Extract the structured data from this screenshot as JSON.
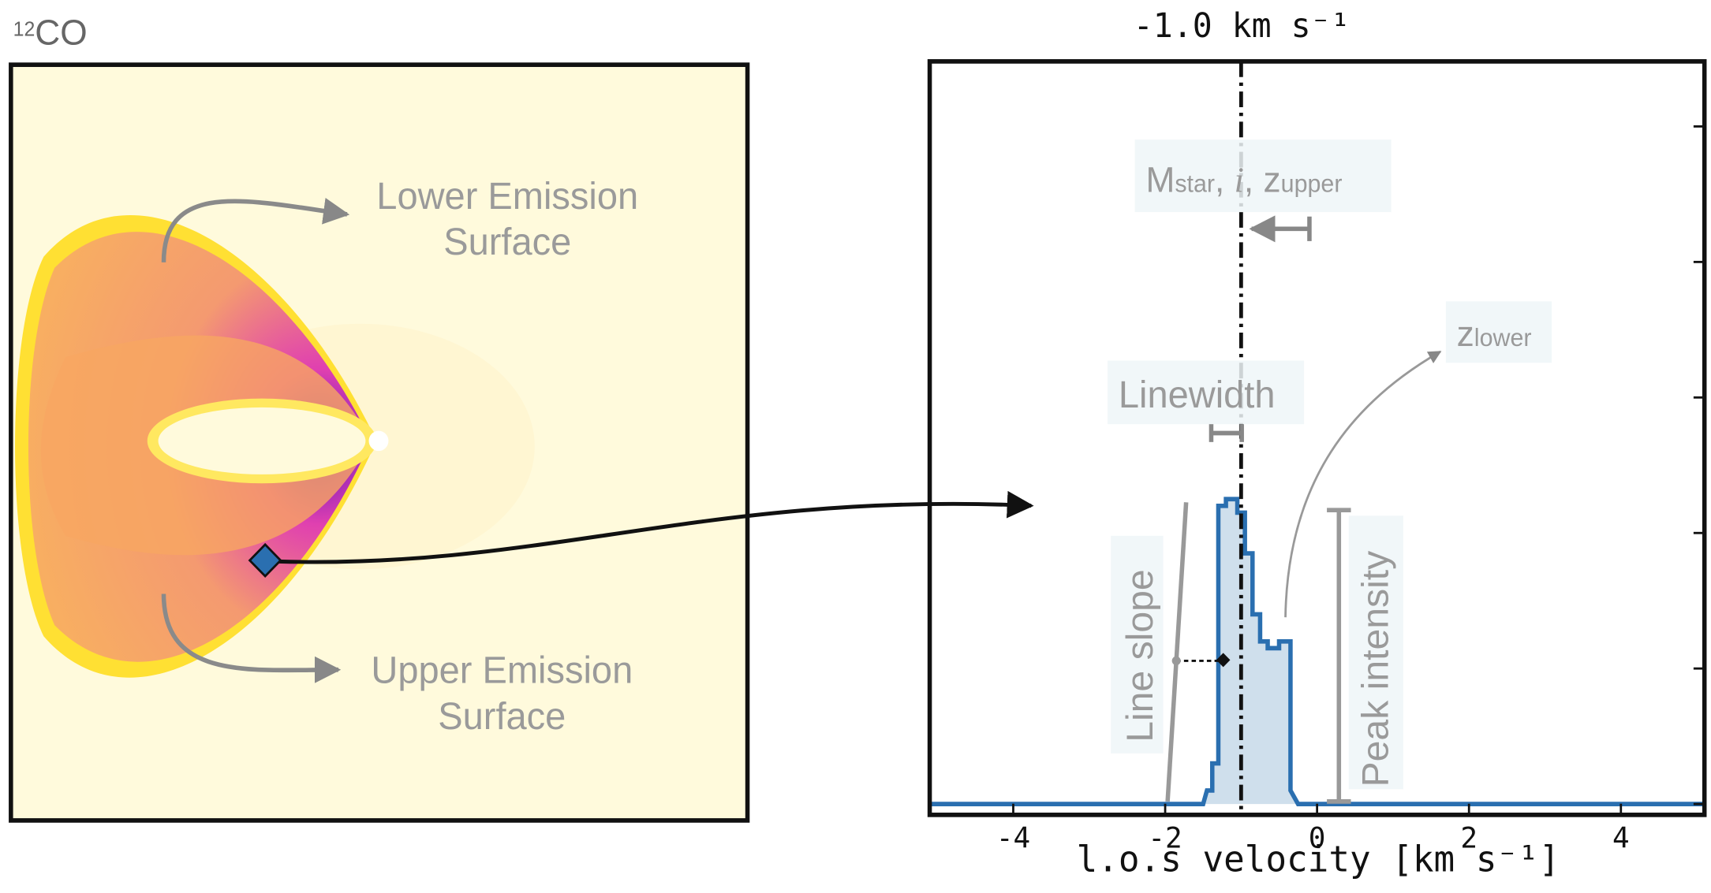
{
  "panel_label": [
    "12",
    "CO"
  ],
  "image_annotations": {
    "lower": [
      "Lower Emission",
      "Surface"
    ],
    "upper": [
      "Upper Emission",
      "Surface"
    ]
  },
  "chart_data": {
    "type": "line",
    "title": "-1.0 km s⁻¹",
    "x_label": "l.o.s velocity [km s⁻¹]",
    "x": [
      -5.1,
      -1.5,
      -1.45,
      -1.38,
      -1.38,
      -1.3,
      -1.3,
      -1.2,
      -1.2,
      -1.05,
      -1.05,
      -0.95,
      -0.95,
      -0.85,
      -0.85,
      -0.75,
      -0.75,
      -0.65,
      -0.65,
      -0.5,
      -0.5,
      -0.35,
      -0.35,
      -0.25,
      5.1
    ],
    "values": [
      0,
      0,
      0.1,
      0.1,
      0.3,
      0.3,
      2.2,
      2.2,
      2.25,
      2.25,
      2.15,
      2.15,
      1.85,
      1.85,
      1.4,
      1.4,
      1.2,
      1.2,
      1.15,
      1.15,
      1.2,
      1.2,
      0.1,
      0,
      0
    ],
    "color": "#2a6fb0",
    "fill": "#cfdfec",
    "channel_velocity": -1.0,
    "xlim": [
      -5.1,
      5.1
    ],
    "xticks": [
      -4,
      -2,
      0,
      2,
      4
    ],
    "ylim": [
      -0.08,
      5.48
    ],
    "yticks": [
      0,
      1,
      2,
      3,
      4,
      5
    ],
    "annotations": {
      "kinematics": [
        "M",
        "star",
        ", ",
        "i",
        ", z",
        "upper"
      ],
      "z_lower": [
        "z",
        "lower"
      ],
      "linewidth": "Linewidth",
      "line_slope": "Line slope",
      "peak_intensity": "Peak intensity"
    }
  }
}
